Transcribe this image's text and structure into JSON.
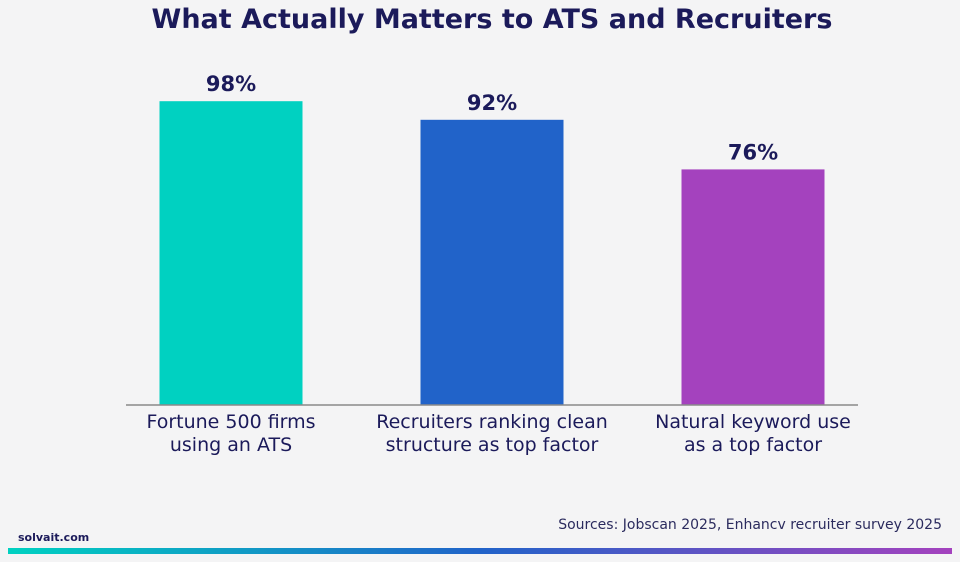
{
  "chart_data": {
    "type": "bar",
    "title": "What Actually Matters to ATS and Recruiters",
    "categories": [
      [
        "Fortune 500 firms",
        "using an ATS"
      ],
      [
        "Recruiters ranking clean",
        "structure as top factor"
      ],
      [
        "Natural keyword use",
        "as a top factor"
      ]
    ],
    "values": [
      98,
      92,
      76
    ],
    "value_labels": [
      "98%",
      "92%",
      "76%"
    ],
    "colors": [
      "#00d1c1",
      "#2163c9",
      "#a442be"
    ],
    "ylim": [
      0,
      100
    ],
    "grid": false,
    "xlabel": "",
    "ylabel": ""
  },
  "footer": {
    "source": "Sources: Jobscan 2025, Enhancv recruiter survey 2025",
    "brand": "solvait.com",
    "gradient": [
      "#00d1c1",
      "#2163c9",
      "#a442be"
    ]
  }
}
